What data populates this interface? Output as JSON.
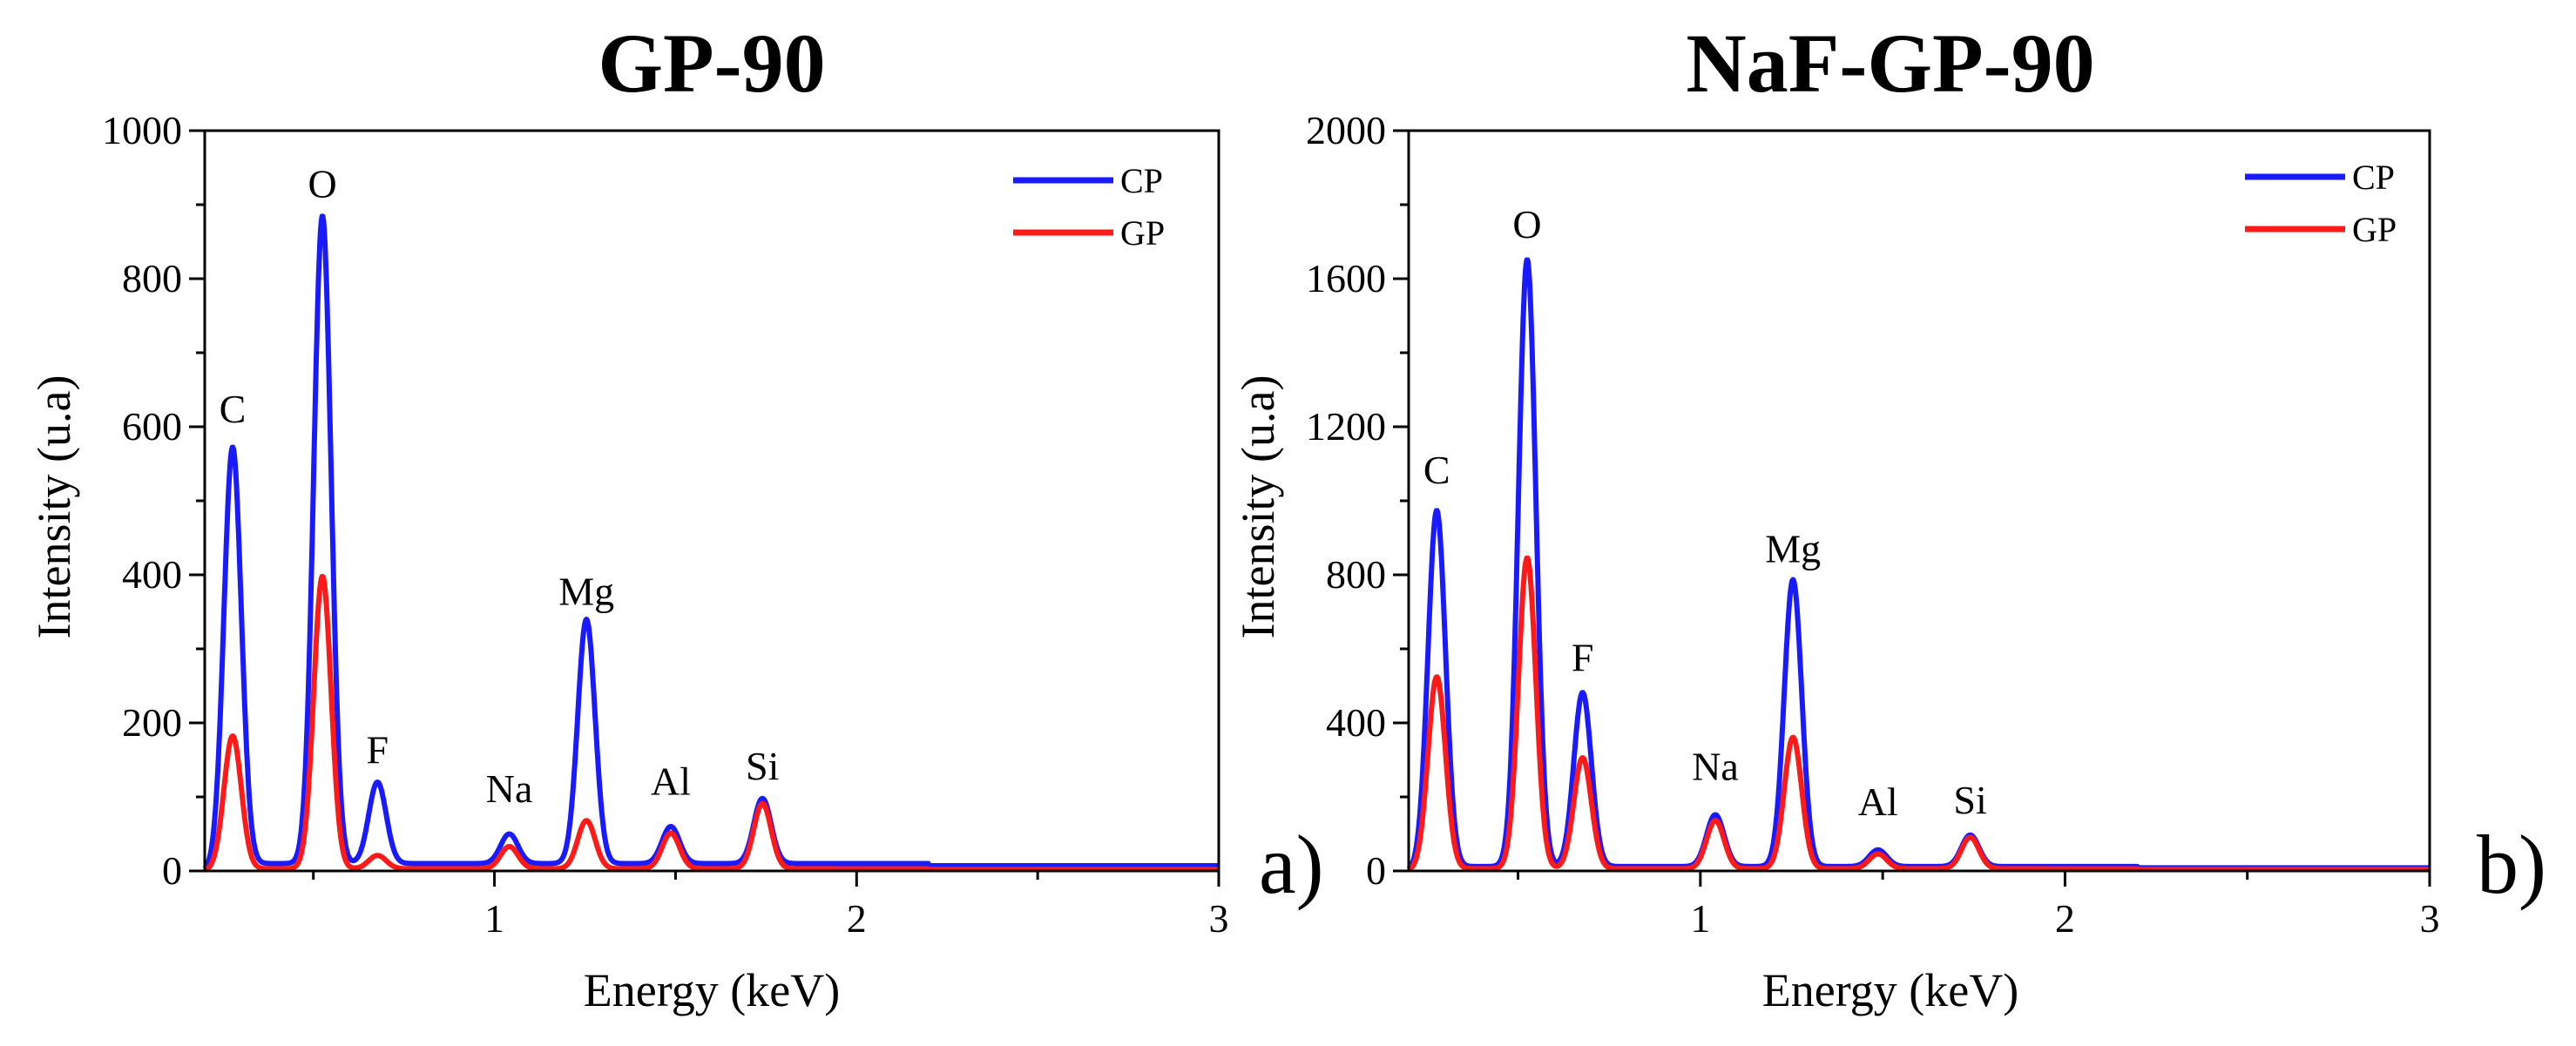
{
  "chart_data": [
    {
      "type": "line",
      "title": "GP-90",
      "xlabel": "Energy (keV)",
      "ylabel": "Intensity (u.a)",
      "xlim": [
        0.2,
        3
      ],
      "ylim": [
        0,
        1000
      ],
      "xticks": [
        "1",
        "2",
        "3"
      ],
      "yticks": [
        "0",
        "200",
        "400",
        "600",
        "800",
        "1000"
      ],
      "panel_label": "a)",
      "legend": [
        "CP",
        "GP"
      ],
      "colors": {
        "CP": "#1a1aff",
        "GP": "#ff1a1a"
      },
      "peak_labels": [
        "C",
        "O",
        "F",
        "Na",
        "Mg",
        "Al",
        "Si"
      ],
      "series": [
        {
          "name": "CP",
          "baseline": 10,
          "peaks": [
            {
              "label": "C",
              "x": 0.277,
              "y": 565
            },
            {
              "label": "O",
              "x": 0.525,
              "y": 875
            },
            {
              "label": "F",
              "x": 0.677,
              "y": 110
            },
            {
              "label": "Na",
              "x": 1.041,
              "y": 40
            },
            {
              "label": "Mg",
              "x": 1.254,
              "y": 330
            },
            {
              "label": "Al",
              "x": 1.487,
              "y": 50
            },
            {
              "label": "Si",
              "x": 1.74,
              "y": 88
            }
          ]
        },
        {
          "name": "GP",
          "baseline": 3,
          "peaks": [
            {
              "label": "C",
              "x": 0.277,
              "y": 180
            },
            {
              "label": "O",
              "x": 0.525,
              "y": 395
            },
            {
              "label": "F",
              "x": 0.677,
              "y": 18
            },
            {
              "label": "Na",
              "x": 1.041,
              "y": 30
            },
            {
              "label": "Mg",
              "x": 1.254,
              "y": 65
            },
            {
              "label": "Al",
              "x": 1.487,
              "y": 48
            },
            {
              "label": "Si",
              "x": 1.74,
              "y": 88
            }
          ]
        }
      ]
    },
    {
      "type": "line",
      "title": "NaF-GP-90",
      "xlabel": "Energy (keV)",
      "ylabel": "Intensity (u.a)",
      "xlim": [
        0.2,
        3
      ],
      "ylim": [
        0,
        2000
      ],
      "xticks": [
        "1",
        "2",
        "3"
      ],
      "yticks": [
        "0",
        "400",
        "800",
        "1200",
        "1600",
        "2000"
      ],
      "panel_label": "b)",
      "legend": [
        "CP",
        "GP"
      ],
      "colors": {
        "CP": "#1a1aff",
        "GP": "#ff1a1a"
      },
      "peak_labels": [
        "C",
        "O",
        "F",
        "Na",
        "Mg",
        "Al",
        "Si"
      ],
      "series": [
        {
          "name": "CP",
          "baseline": 12,
          "peaks": [
            {
              "label": "C",
              "x": 0.277,
              "y": 965
            },
            {
              "label": "O",
              "x": 0.525,
              "y": 1640
            },
            {
              "label": "F",
              "x": 0.677,
              "y": 470
            },
            {
              "label": "Na",
              "x": 1.041,
              "y": 140
            },
            {
              "label": "Mg",
              "x": 1.254,
              "y": 775
            },
            {
              "label": "Al",
              "x": 1.487,
              "y": 45
            },
            {
              "label": "Si",
              "x": 1.74,
              "y": 85
            }
          ]
        },
        {
          "name": "GP",
          "baseline": 6,
          "peaks": [
            {
              "label": "C",
              "x": 0.277,
              "y": 520
            },
            {
              "label": "O",
              "x": 0.525,
              "y": 840
            },
            {
              "label": "F",
              "x": 0.677,
              "y": 300
            },
            {
              "label": "Na",
              "x": 1.041,
              "y": 130
            },
            {
              "label": "Mg",
              "x": 1.254,
              "y": 355
            },
            {
              "label": "Al",
              "x": 1.487,
              "y": 40
            },
            {
              "label": "Si",
              "x": 1.74,
              "y": 85
            }
          ]
        }
      ]
    }
  ]
}
